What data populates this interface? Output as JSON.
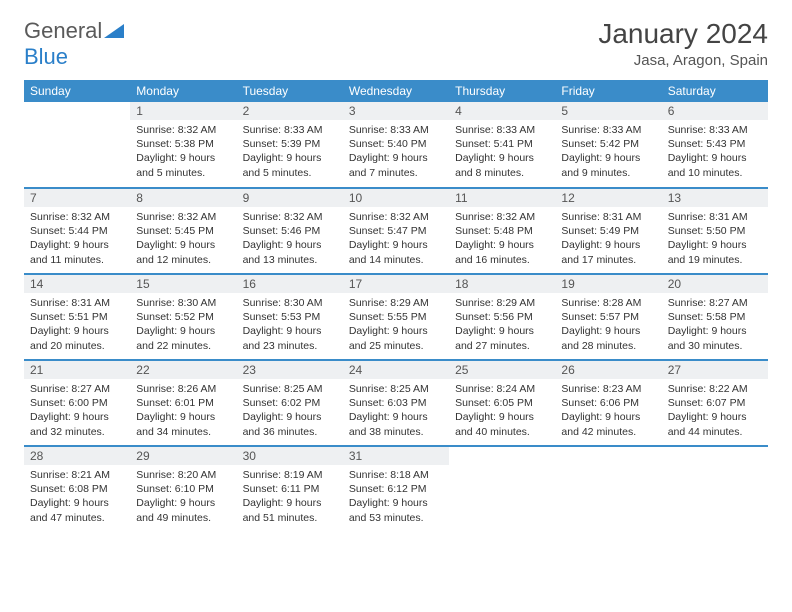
{
  "brand": {
    "part1": "General",
    "part2": "Blue"
  },
  "title": "January 2024",
  "location": "Jasa, Aragon, Spain",
  "colors": {
    "header_bg": "#3a8cc9",
    "header_text": "#ffffff",
    "daynum_bg": "#eef0f2",
    "row_border": "#3a8cc9",
    "brand_gray": "#5a5a5a",
    "brand_blue": "#2a7fc9"
  },
  "weekdays": [
    "Sunday",
    "Monday",
    "Tuesday",
    "Wednesday",
    "Thursday",
    "Friday",
    "Saturday"
  ],
  "leading_blanks": 1,
  "days": [
    {
      "n": 1,
      "sunrise": "8:32 AM",
      "sunset": "5:38 PM",
      "daylight": "9 hours and 5 minutes."
    },
    {
      "n": 2,
      "sunrise": "8:33 AM",
      "sunset": "5:39 PM",
      "daylight": "9 hours and 5 minutes."
    },
    {
      "n": 3,
      "sunrise": "8:33 AM",
      "sunset": "5:40 PM",
      "daylight": "9 hours and 7 minutes."
    },
    {
      "n": 4,
      "sunrise": "8:33 AM",
      "sunset": "5:41 PM",
      "daylight": "9 hours and 8 minutes."
    },
    {
      "n": 5,
      "sunrise": "8:33 AM",
      "sunset": "5:42 PM",
      "daylight": "9 hours and 9 minutes."
    },
    {
      "n": 6,
      "sunrise": "8:33 AM",
      "sunset": "5:43 PM",
      "daylight": "9 hours and 10 minutes."
    },
    {
      "n": 7,
      "sunrise": "8:32 AM",
      "sunset": "5:44 PM",
      "daylight": "9 hours and 11 minutes."
    },
    {
      "n": 8,
      "sunrise": "8:32 AM",
      "sunset": "5:45 PM",
      "daylight": "9 hours and 12 minutes."
    },
    {
      "n": 9,
      "sunrise": "8:32 AM",
      "sunset": "5:46 PM",
      "daylight": "9 hours and 13 minutes."
    },
    {
      "n": 10,
      "sunrise": "8:32 AM",
      "sunset": "5:47 PM",
      "daylight": "9 hours and 14 minutes."
    },
    {
      "n": 11,
      "sunrise": "8:32 AM",
      "sunset": "5:48 PM",
      "daylight": "9 hours and 16 minutes."
    },
    {
      "n": 12,
      "sunrise": "8:31 AM",
      "sunset": "5:49 PM",
      "daylight": "9 hours and 17 minutes."
    },
    {
      "n": 13,
      "sunrise": "8:31 AM",
      "sunset": "5:50 PM",
      "daylight": "9 hours and 19 minutes."
    },
    {
      "n": 14,
      "sunrise": "8:31 AM",
      "sunset": "5:51 PM",
      "daylight": "9 hours and 20 minutes."
    },
    {
      "n": 15,
      "sunrise": "8:30 AM",
      "sunset": "5:52 PM",
      "daylight": "9 hours and 22 minutes."
    },
    {
      "n": 16,
      "sunrise": "8:30 AM",
      "sunset": "5:53 PM",
      "daylight": "9 hours and 23 minutes."
    },
    {
      "n": 17,
      "sunrise": "8:29 AM",
      "sunset": "5:55 PM",
      "daylight": "9 hours and 25 minutes."
    },
    {
      "n": 18,
      "sunrise": "8:29 AM",
      "sunset": "5:56 PM",
      "daylight": "9 hours and 27 minutes."
    },
    {
      "n": 19,
      "sunrise": "8:28 AM",
      "sunset": "5:57 PM",
      "daylight": "9 hours and 28 minutes."
    },
    {
      "n": 20,
      "sunrise": "8:27 AM",
      "sunset": "5:58 PM",
      "daylight": "9 hours and 30 minutes."
    },
    {
      "n": 21,
      "sunrise": "8:27 AM",
      "sunset": "6:00 PM",
      "daylight": "9 hours and 32 minutes."
    },
    {
      "n": 22,
      "sunrise": "8:26 AM",
      "sunset": "6:01 PM",
      "daylight": "9 hours and 34 minutes."
    },
    {
      "n": 23,
      "sunrise": "8:25 AM",
      "sunset": "6:02 PM",
      "daylight": "9 hours and 36 minutes."
    },
    {
      "n": 24,
      "sunrise": "8:25 AM",
      "sunset": "6:03 PM",
      "daylight": "9 hours and 38 minutes."
    },
    {
      "n": 25,
      "sunrise": "8:24 AM",
      "sunset": "6:05 PM",
      "daylight": "9 hours and 40 minutes."
    },
    {
      "n": 26,
      "sunrise": "8:23 AM",
      "sunset": "6:06 PM",
      "daylight": "9 hours and 42 minutes."
    },
    {
      "n": 27,
      "sunrise": "8:22 AM",
      "sunset": "6:07 PM",
      "daylight": "9 hours and 44 minutes."
    },
    {
      "n": 28,
      "sunrise": "8:21 AM",
      "sunset": "6:08 PM",
      "daylight": "9 hours and 47 minutes."
    },
    {
      "n": 29,
      "sunrise": "8:20 AM",
      "sunset": "6:10 PM",
      "daylight": "9 hours and 49 minutes."
    },
    {
      "n": 30,
      "sunrise": "8:19 AM",
      "sunset": "6:11 PM",
      "daylight": "9 hours and 51 minutes."
    },
    {
      "n": 31,
      "sunrise": "8:18 AM",
      "sunset": "6:12 PM",
      "daylight": "9 hours and 53 minutes."
    }
  ],
  "labels": {
    "sunrise": "Sunrise:",
    "sunset": "Sunset:",
    "daylight": "Daylight:"
  }
}
